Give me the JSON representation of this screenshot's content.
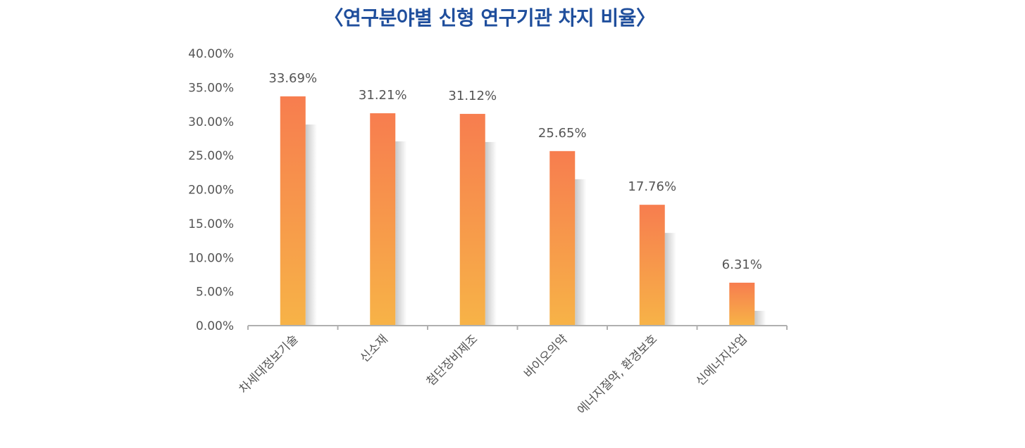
{
  "title": "〈연구분야별 신형 연구기관 차지 비율〉",
  "colors": {
    "title": "#1f4e9c",
    "bar_top": "#f77d4f",
    "bar_bottom": "#f7b347",
    "axis": "#b0b0b0",
    "text": "#555555"
  },
  "chart_data": {
    "type": "bar",
    "title": "〈연구분야별 신형 연구기관 차지 비율〉",
    "categories": [
      "차세대정보기술",
      "신소재",
      "첨단장비제조",
      "바이오의약",
      "에너지절약, 환경보호",
      "신에너지산업"
    ],
    "values": [
      33.69,
      31.21,
      31.12,
      25.65,
      17.76,
      6.31
    ],
    "value_labels": [
      "33.69%",
      "31.21%",
      "31.12%",
      "25.65%",
      "17.76%",
      "6.31%"
    ],
    "y_ticks": [
      "0.00%",
      "5.00%",
      "10.00%",
      "15.00%",
      "20.00%",
      "25.00%",
      "30.00%",
      "35.00%",
      "40.00%"
    ],
    "ylim": [
      0,
      40
    ],
    "xlabel": "",
    "ylabel": "",
    "grid": false,
    "legend": "none"
  }
}
